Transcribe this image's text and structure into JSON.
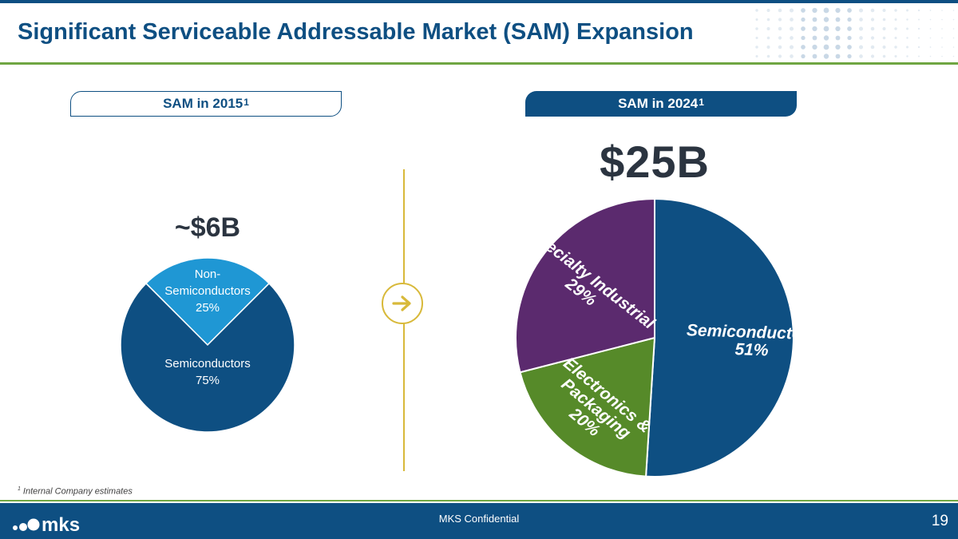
{
  "slide": {
    "title": "Significant Serviceable Addressable Market (SAM) Expansion",
    "footnote_marker": "1",
    "footnote": "Internal Company estimates",
    "footer_text": "MKS Confidential",
    "page_number": "19",
    "logo_text": "mks"
  },
  "colors": {
    "brand_blue": "#0e4f82",
    "accent_green": "#6fa642",
    "gold": "#d8b93a",
    "light_blue": "#1f97d4",
    "purple": "#5b2a6e",
    "green": "#568a29"
  },
  "chart_data": [
    {
      "type": "pie",
      "title": "SAM in 2015",
      "title_superscript": "1",
      "total_label": "~$6B",
      "series": [
        {
          "name": "Non-Semiconductors",
          "label_lines": [
            "Non-",
            "Semiconductors"
          ],
          "value": 25,
          "value_label": "25%",
          "color": "#1f97d4"
        },
        {
          "name": "Semiconductors",
          "label_lines": [
            "Semiconductors"
          ],
          "value": 75,
          "value_label": "75%",
          "color": "#0e4f82"
        }
      ]
    },
    {
      "type": "pie",
      "title": "SAM in 2024",
      "title_superscript": "1",
      "total_label": "$25B",
      "series": [
        {
          "name": "Semiconductors",
          "label_lines": [
            "Semiconductors"
          ],
          "value": 51,
          "value_label": "51%",
          "color": "#0e4f82"
        },
        {
          "name": "Electronics & Packaging",
          "label_lines": [
            "Electronics &",
            "Packaging"
          ],
          "value": 20,
          "value_label": "20%",
          "color": "#568a29"
        },
        {
          "name": "Specialty Industrial",
          "label_lines": [
            "Specialty Industrial"
          ],
          "value": 29,
          "value_label": "29%",
          "color": "#5b2a6e"
        }
      ]
    }
  ]
}
